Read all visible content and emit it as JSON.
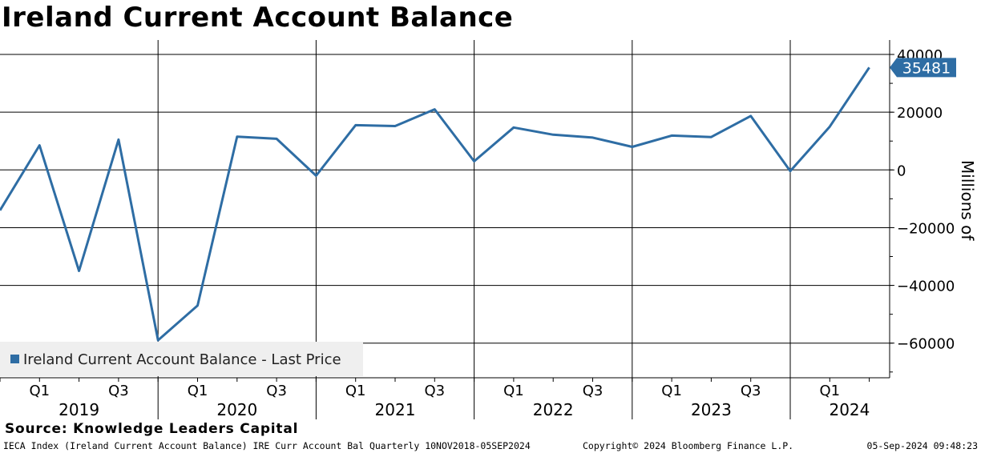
{
  "title": "Ireland Current Account Balance",
  "source": "Source: Knowledge Leaders Capital",
  "footer": {
    "left": "IECA Index (Ireland Current Account Balance) IRE Curr Account Bal  Quarterly 10NOV2018-05SEP2024",
    "middle": "Copyright© 2024 Bloomberg Finance L.P.",
    "right": "05-Sep-2024 09:48:23"
  },
  "chart_data": {
    "type": "line",
    "title": "Ireland Current Account Balance",
    "ylabel": "Millions of",
    "ylim": [
      -72000,
      45000
    ],
    "yticks": [
      40000,
      20000,
      0,
      -20000,
      -40000,
      -60000
    ],
    "ytick_labels": [
      "40000",
      "20000",
      "0",
      "−20000",
      "−40000",
      "−60000"
    ],
    "x_quarter_labels": [
      "Q1",
      "Q3",
      "Q1",
      "Q3",
      "Q1",
      "Q3",
      "Q1",
      "Q3",
      "Q1",
      "Q3",
      "Q1"
    ],
    "x_year_labels": [
      "2019",
      "2020",
      "2021",
      "2022",
      "2023",
      "2024"
    ],
    "grid": true,
    "legend_position": "bottom-left",
    "series": [
      {
        "name": "Ireland Current Account Balance - Last Price",
        "color": "#2e6da4",
        "x": [
          "2018 Q4",
          "2019 Q1",
          "2019 Q2",
          "2019 Q3",
          "2019 Q4",
          "2020 Q1",
          "2020 Q2",
          "2020 Q3",
          "2020 Q4",
          "2021 Q1",
          "2021 Q2",
          "2021 Q3",
          "2021 Q4",
          "2022 Q1",
          "2022 Q2",
          "2022 Q3",
          "2022 Q4",
          "2023 Q1",
          "2023 Q2",
          "2023 Q3",
          "2023 Q4",
          "2024 Q1",
          "2024 Q2"
        ],
        "values": [
          -14000,
          8500,
          -35000,
          10500,
          -59000,
          -47000,
          11500,
          10800,
          -2000,
          15500,
          15200,
          21000,
          3000,
          14700,
          12200,
          11200,
          8000,
          11900,
          11400,
          18700,
          -400,
          15000,
          35481
        ]
      }
    ],
    "last_value_label": "35481"
  }
}
